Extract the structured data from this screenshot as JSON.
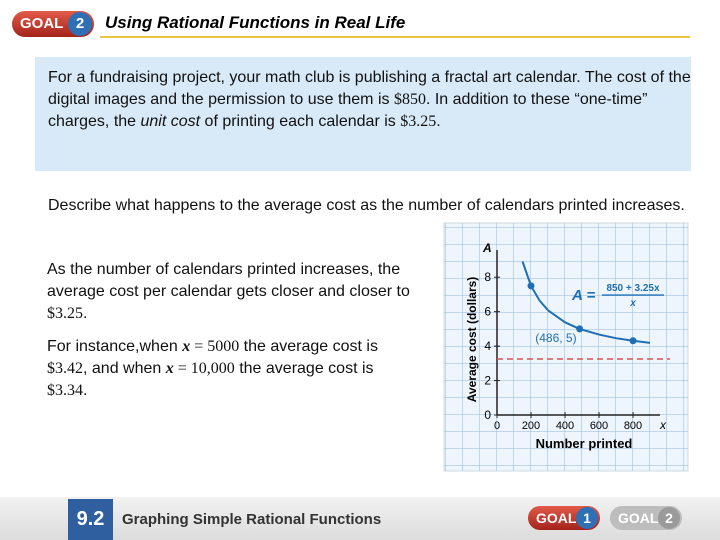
{
  "header": {
    "badge": "GOAL",
    "badge_number": "2",
    "title": "Using Rational Functions in Real Life"
  },
  "problem": [
    "For a fundraising project, your math club is publishing a fractal art calendar. The cost of the digital images and the permission to use them is ",
    "$850",
    ". In addition to these “one-time” charges, the ",
    "unit cost",
    " of printing each calendar is ",
    "$3.25",
    "."
  ],
  "question": "Describe what happens to the average cost as the number of calendars printed increases.",
  "answer": [
    "As the number of calendars printed increases, the average cost per calendar gets closer and closer to ",
    "$3.25",
    "."
  ],
  "example": [
    "For instance,when ",
    "x",
    " = 5000",
    " the average cost is ",
    "$3.42",
    ", and when ",
    "x",
    " = 10,000",
    " the average cost is ",
    "$3.34",
    "."
  ],
  "chart_data": {
    "type": "line",
    "xlabel": "Number printed",
    "ylabel": "Average cost (dollars)",
    "x_var": "x",
    "y_var": "A",
    "equation": {
      "lhs": "A =",
      "numerator": "850 + 3.25x",
      "denominator": "x"
    },
    "xlim": [
      0,
      900
    ],
    "ylim": [
      0,
      9
    ],
    "xticks": [
      0,
      200,
      400,
      600,
      800
    ],
    "yticks": [
      0,
      2,
      4,
      6,
      8
    ],
    "asymptote": 3.25,
    "series": [
      {
        "name": "curve",
        "color": "#1f6fb5",
        "x": [
          150,
          200,
          250,
          300,
          400,
          486,
          600,
          700,
          800,
          900
        ],
        "values": [
          8.92,
          7.5,
          6.65,
          6.08,
          5.38,
          5,
          4.67,
          4.46,
          4.31,
          4.19
        ]
      },
      {
        "name": "points",
        "color": "#1f6fb5",
        "x": [
          200,
          486,
          800
        ],
        "values": [
          7.5,
          5,
          4.31
        ]
      }
    ],
    "annotation": "(486, 5)"
  },
  "footer": {
    "section": "9.2",
    "title": "Graphing Simple Rational Functions",
    "goal1": "GOAL",
    "goal1_number": "1",
    "goal2": "GOAL",
    "goal2_number": "2"
  }
}
